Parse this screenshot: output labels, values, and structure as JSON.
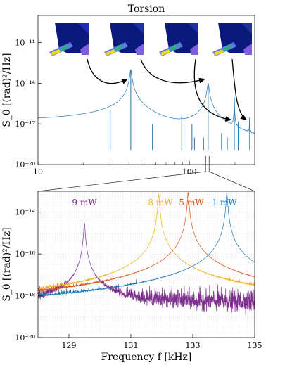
{
  "chart_data": [
    {
      "type": "line",
      "title": "Torsion",
      "xlabel": "",
      "ylabel": "S_θ [(rad)²/Hz]",
      "xscale": "log",
      "yscale": "log",
      "xlim": [
        10,
        270
      ],
      "ylim": [
        1e-20,
        1e-09
      ],
      "x_ticks": [
        10,
        100
      ],
      "x_tick_labels": [
        "10",
        "100"
      ],
      "y_ticks": [
        1e-20,
        1e-17,
        1e-14,
        1e-11
      ],
      "y_tick_labels": [
        "10⁻²⁰",
        "10⁻¹⁷",
        "10⁻¹⁴",
        "10⁻¹¹"
      ],
      "grid": false,
      "series_color": "#1f77b4",
      "noise_floor": 1.2e-19,
      "peaks": [
        {
          "f": 30,
          "S": 1e-16
        },
        {
          "f": 41,
          "S": 1e-13
        },
        {
          "f": 57,
          "S": 1e-17
        },
        {
          "f": 89,
          "S": 3e-17
        },
        {
          "f": 104,
          "S": 1e-17
        },
        {
          "f": 108,
          "S": 1e-18
        },
        {
          "f": 124,
          "S": 1e-18
        },
        {
          "f": 133,
          "S": 1e-14
        },
        {
          "f": 163,
          "S": 2e-18
        },
        {
          "f": 178,
          "S": 1e-18
        },
        {
          "f": 198,
          "S": 1e-15
        },
        {
          "f": 210,
          "S": 1e-17
        },
        {
          "f": 250,
          "S": 3e-17
        }
      ],
      "mode_shape_insets": 4
    },
    {
      "type": "line",
      "title": "",
      "xlabel": "Frequency f [kHz]",
      "ylabel": "S_θ [(rad)²/Hz]",
      "xlim": [
        128,
        135
      ],
      "ylim": [
        1e-20,
        1e-13
      ],
      "yscale": "log",
      "x_ticks": [
        129,
        131,
        133,
        135
      ],
      "x_tick_labels": [
        "129",
        "131",
        "133",
        "135"
      ],
      "y_ticks": [
        1e-20,
        1e-18,
        1e-16,
        1e-14
      ],
      "y_tick_labels": [
        "10⁻²⁰",
        "10⁻¹⁸",
        "10⁻¹⁶",
        "10⁻¹⁴"
      ],
      "grid": true,
      "series": [
        {
          "name": "1 mW",
          "color": "#1f77b4",
          "peak_f": 134.1,
          "peak_S": 8e-14,
          "floor": 1.5e-19
        },
        {
          "name": "5 mW",
          "color": "#d95319",
          "peak_f": 132.85,
          "peak_S": 9e-14,
          "floor": 2.2e-19
        },
        {
          "name": "8 mW",
          "color": "#edb120",
          "peak_f": 131.9,
          "peak_S": 7e-14,
          "floor": 3e-19
        },
        {
          "name": "9 mW",
          "color": "#7e2f8e",
          "peak_f": 129.5,
          "peak_S": 3e-15,
          "floor": 5e-19
        }
      ]
    }
  ],
  "labels": {
    "top_title": "Torsion",
    "top_ylabel": "S_θ [(rad)²/Hz]",
    "bottom_ylabel": "S_θ [(rad)²/Hz]",
    "bottom_xlabel": "Frequency f [kHz]",
    "legend_9mw": "9 mW",
    "legend_8mw": "8 mW",
    "legend_5mw": "5 mW",
    "legend_1mw": "1 mW"
  }
}
